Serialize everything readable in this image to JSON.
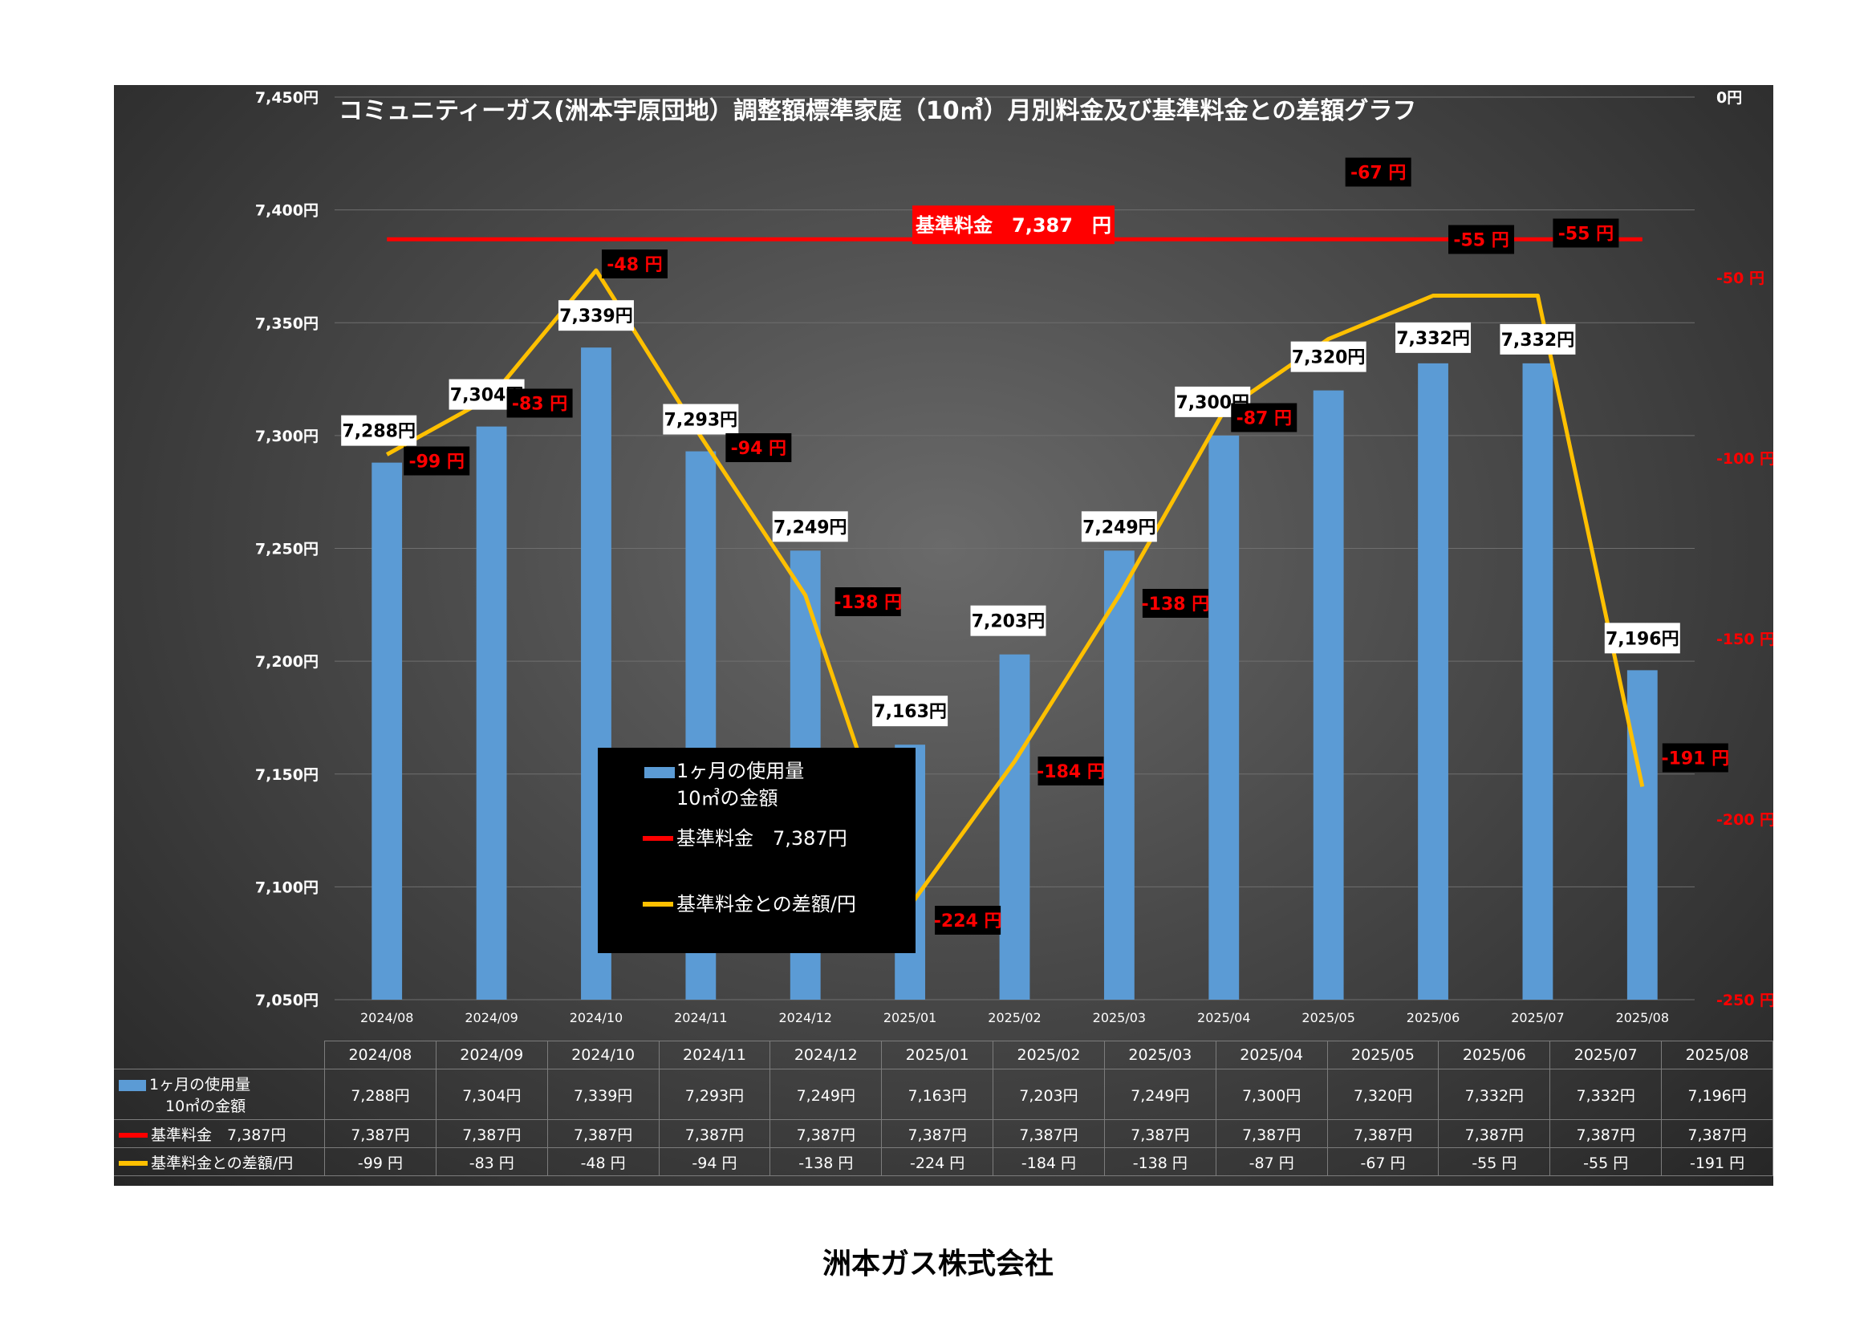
{
  "chart_data": {
    "type": "bar+line",
    "title": "コミュニティーガス(洲本宇原団地）調整額標準家庭（10㎥）月別料金及び基準料金との差額グラフ",
    "categories": [
      "2024/08",
      "2024/09",
      "2024/10",
      "2024/11",
      "2024/12",
      "2025/01",
      "2025/02",
      "2025/03",
      "2025/04",
      "2025/05",
      "2025/06",
      "2025/07",
      "2025/08"
    ],
    "series": [
      {
        "name": "1ヶ月の使用量\n10㎥の金額",
        "type": "bar",
        "axis": "left",
        "color": "#5b9bd5",
        "values": [
          7288,
          7304,
          7339,
          7293,
          7249,
          7163,
          7203,
          7249,
          7300,
          7320,
          7332,
          7332,
          7196
        ],
        "labels": [
          "7,288円",
          "7,304円",
          "7,339円",
          "7,293円",
          "7,249円",
          "7,163円",
          "7,203円",
          "7,249円",
          "7,300円",
          "7,320円",
          "7,332円",
          "7,332円",
          "7,196円"
        ]
      },
      {
        "name": "基準料金　7,387円",
        "type": "line",
        "axis": "left",
        "color": "#ff0000",
        "values": [
          7387,
          7387,
          7387,
          7387,
          7387,
          7387,
          7387,
          7387,
          7387,
          7387,
          7387,
          7387,
          7387
        ],
        "labels": [
          "7,387円",
          "7,387円",
          "7,387円",
          "7,387円",
          "7,387円",
          "7,387円",
          "7,387円",
          "7,387円",
          "7,387円",
          "7,387円",
          "7,387円",
          "7,387円",
          "7,387円"
        ]
      },
      {
        "name": "基準料金との差額/円",
        "type": "line",
        "axis": "right",
        "color": "#ffc000",
        "values": [
          -99,
          -83,
          -48,
          -94,
          -138,
          -224,
          -184,
          -138,
          -87,
          -67,
          -55,
          -55,
          -191
        ],
        "labels": [
          "-99 円",
          "-83 円",
          "-48 円",
          "-94 円",
          "-138 円",
          "-224 円",
          "-184 円",
          "-138 円",
          "-87 円",
          "-67 円",
          "-55 円",
          "-55 円",
          "-191 円"
        ]
      }
    ],
    "baseline_label": "基準料金　7,387　円",
    "left_axis": {
      "ylim": [
        7050,
        7450
      ],
      "ticks": [
        "7,050円",
        "7,100円",
        "7,150円",
        "7,200円",
        "7,250円",
        "7,300円",
        "7,350円",
        "7,400円",
        "7,450円"
      ]
    },
    "right_axis": {
      "ylim": [
        -250,
        0
      ],
      "ticks": [
        "-250 円",
        "-200 円",
        "-150 円",
        "-100 円",
        "-50 円",
        "0円"
      ]
    },
    "legend_placement": "center",
    "grid": true
  },
  "legend": {
    "bar_line1": "1ヶ月の使用量",
    "bar_line2": "10㎥の金額",
    "base": "基準料金　7,387円",
    "diff": "基準料金との差額/円"
  },
  "table": {
    "row_usage_1": "1ヶ月の使用量",
    "row_usage_2": "10㎥の金額",
    "row_base": "基準料金　7,387円",
    "row_diff": "基準料金との差額/円"
  },
  "colors": {
    "bar": "#5b9bd5",
    "base_line": "#ff0000",
    "diff_line": "#ffc000",
    "diff_label_text": "#ff0000"
  },
  "footer": "洲本ガス株式会社"
}
